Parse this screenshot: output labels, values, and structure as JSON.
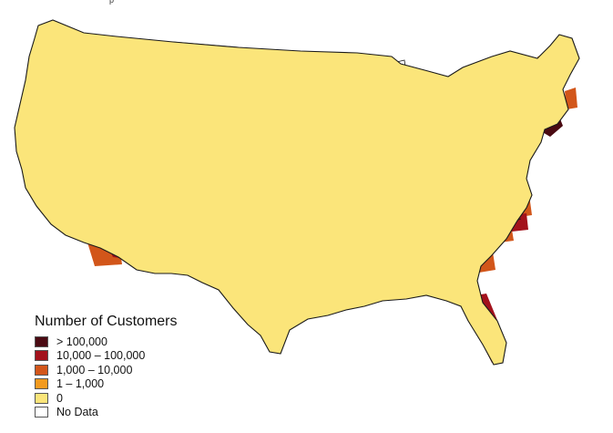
{
  "header_fragment": "p",
  "legend": {
    "title": "Number of Customers",
    "items": [
      {
        "label": "> 100,000",
        "color": "#4a0a12"
      },
      {
        "label": "10,000 – 100,000",
        "color": "#a3121c"
      },
      {
        "label": "1,000 – 10,000",
        "color": "#d2561a"
      },
      {
        "label": "1 – 1,000",
        "color": "#f29a1f"
      },
      {
        "label": "0",
        "color": "#fbe57a"
      },
      {
        "label": "No Data",
        "color": "#ffffff"
      }
    ]
  },
  "colors": {
    "state_border": "#1a1a1a",
    "background": "#ffffff"
  }
}
